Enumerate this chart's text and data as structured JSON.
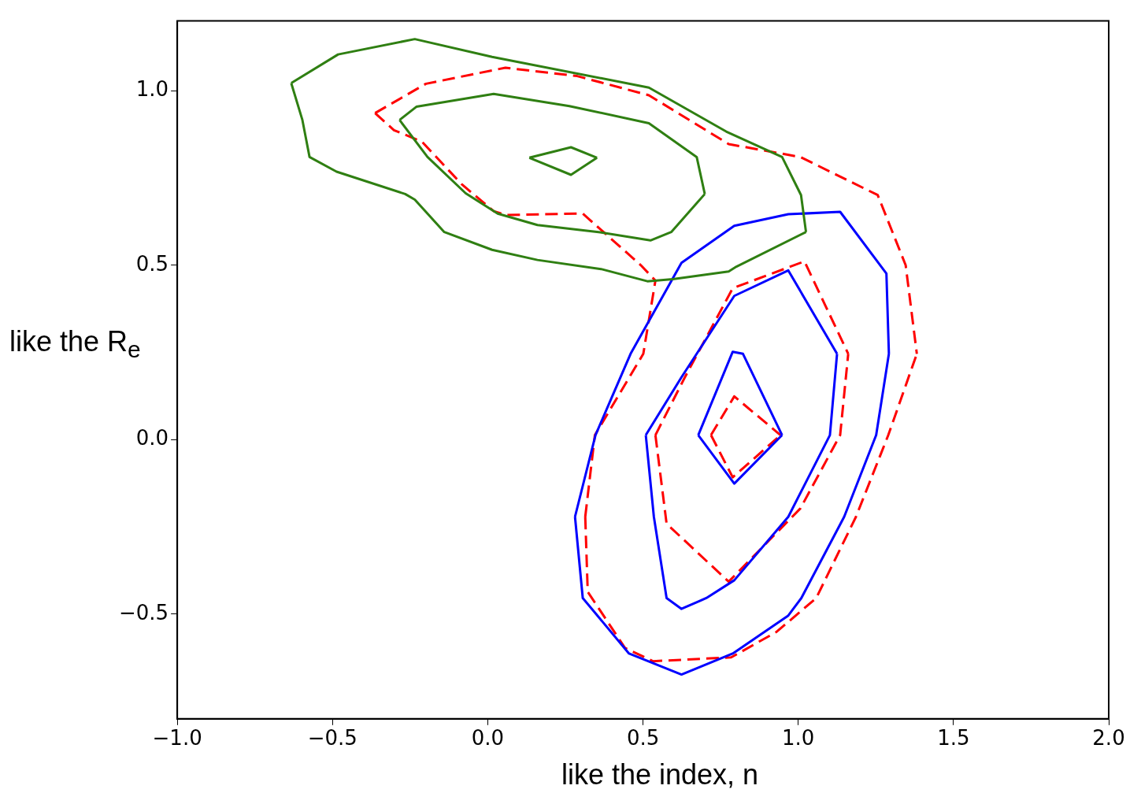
{
  "chart_data": {
    "type": "line",
    "xlabel": "like the index, n",
    "ylabel": "like the R$_{e}$",
    "xlim": [
      -1.0,
      2.0
    ],
    "ylim": [
      -0.8,
      1.2
    ],
    "xticks": [
      {
        "value": -1.0,
        "label": "−1.0"
      },
      {
        "value": -0.5,
        "label": "−0.5"
      },
      {
        "value": 0.0,
        "label": "0.0"
      },
      {
        "value": 0.5,
        "label": "0.5"
      },
      {
        "value": 1.0,
        "label": "1.0"
      },
      {
        "value": 1.5,
        "label": "1.5"
      },
      {
        "value": 2.0,
        "label": "2.0"
      }
    ],
    "yticks": [
      {
        "value": -0.5,
        "label": "−0.5"
      },
      {
        "value": 0.0,
        "label": "0.0"
      },
      {
        "value": 0.5,
        "label": "0.5"
      },
      {
        "value": 1.0,
        "label": "1.0"
      }
    ],
    "grid": false,
    "legend": false,
    "marker": "none",
    "series": [
      {
        "color": "#2f7f12",
        "line_style": "solid",
        "x": [
          -0.633,
          -0.597,
          -0.574,
          -0.487,
          -0.266,
          -0.235,
          -0.14,
          0.014,
          0.16,
          0.365,
          0.514,
          0.596,
          0.776,
          0.801,
          1.025,
          null,
          -0.633,
          -0.482,
          -0.235,
          0.014,
          0.519,
          0.768,
          0.948,
          1.009,
          1.025
        ],
        "values": [
          1.022,
          0.916,
          0.81,
          0.768,
          0.704,
          0.688,
          0.595,
          0.544,
          0.515,
          0.489,
          0.454,
          0.46,
          0.482,
          0.496,
          0.595,
          null,
          1.022,
          1.104,
          1.148,
          1.097,
          1.009,
          0.883,
          0.81,
          0.701,
          0.595
        ]
      },
      {
        "color": "#2f7f12",
        "line_style": "solid",
        "x": [
          -0.284,
          -0.23,
          0.019,
          0.263,
          0.519,
          0.673,
          0.699,
          null,
          -0.284,
          -0.194,
          -0.071,
          0.032,
          0.16,
          0.357,
          0.524,
          0.591,
          0.699
        ],
        "values": [
          0.916,
          0.954,
          0.991,
          0.956,
          0.907,
          0.81,
          0.704,
          null,
          0.916,
          0.81,
          0.706,
          0.648,
          0.615,
          0.595,
          0.571,
          0.595,
          0.704
        ]
      },
      {
        "color": "#2f7f12",
        "line_style": "solid",
        "x": [
          0.134,
          0.268,
          0.352,
          null,
          0.134,
          0.268,
          0.352
        ],
        "values": [
          0.808,
          0.838,
          0.808,
          null,
          0.808,
          0.759,
          0.808
        ]
      },
      {
        "color": "#0000ff",
        "line_style": "solid",
        "x": [
          0.281,
          0.306,
          0.455,
          0.624,
          0.789,
          0.968,
          1.01,
          1.148,
          1.251,
          1.292,
          null,
          0.281,
          0.347,
          0.46,
          0.624,
          0.794,
          0.968,
          1.135,
          1.284,
          1.292
        ],
        "values": [
          -0.221,
          -0.454,
          -0.613,
          -0.673,
          -0.613,
          -0.504,
          -0.454,
          -0.221,
          0.013,
          0.246,
          null,
          -0.221,
          0.013,
          0.246,
          0.507,
          0.613,
          0.646,
          0.653,
          0.476,
          0.246
        ]
      },
      {
        "color": "#0000ff",
        "line_style": "solid",
        "x": [
          0.509,
          0.535,
          0.576,
          0.624,
          0.704,
          0.794,
          0.968,
          1.102,
          1.125,
          null,
          0.509,
          0.624,
          0.794,
          0.968,
          1.125
        ],
        "values": [
          0.013,
          -0.221,
          -0.454,
          -0.485,
          -0.454,
          -0.403,
          -0.221,
          0.013,
          0.246,
          null,
          0.013,
          0.179,
          0.412,
          0.485,
          0.246
        ]
      },
      {
        "color": "#0000ff",
        "line_style": "solid",
        "x": [
          0.678,
          0.794,
          0.948,
          null,
          0.678,
          0.789,
          0.822,
          0.948
        ],
        "values": [
          0.013,
          -0.126,
          0.013,
          null,
          0.013,
          0.252,
          0.246,
          0.013
        ]
      },
      {
        "color": "#ff0000",
        "line_style": "dashed",
        "x": [
          -0.363,
          -0.199,
          0.057,
          0.288,
          0.519,
          0.776,
          1.007,
          1.256,
          1.346,
          1.382,
          null,
          0.314,
          0.322,
          0.442,
          0.532,
          0.784,
          0.93,
          1.058,
          1.186,
          1.29,
          1.382,
          null,
          0.314,
          0.345,
          0.501,
          0.54,
          null,
          -0.363,
          -0.302,
          -0.212,
          -0.084,
          0.019,
          0.057,
          0.306,
          0.493,
          0.54
        ],
        "values": [
          0.936,
          1.02,
          1.066,
          1.042,
          0.987,
          0.847,
          0.81,
          0.701,
          0.5,
          0.246,
          null,
          -0.221,
          -0.436,
          -0.597,
          -0.635,
          -0.624,
          -0.551,
          -0.454,
          -0.221,
          0.013,
          0.246,
          null,
          -0.221,
          0.013,
          0.246,
          0.456,
          null,
          0.936,
          0.887,
          0.854,
          0.732,
          0.655,
          0.644,
          0.648,
          0.5,
          0.456
        ]
      },
      {
        "color": "#ff0000",
        "line_style": "dashed",
        "x": [
          0.54,
          0.576,
          0.776,
          1.007,
          1.135,
          1.161,
          null,
          0.54,
          0.635,
          0.789,
          1.02,
          1.161
        ],
        "values": [
          0.013,
          -0.241,
          -0.407,
          -0.197,
          0.013,
          0.246,
          null,
          0.013,
          0.179,
          0.434,
          0.511,
          0.246
        ]
      },
      {
        "color": "#ff0000",
        "line_style": "dashed",
        "x": [
          0.719,
          0.789,
          0.943,
          null,
          0.719,
          0.794,
          0.943
        ],
        "values": [
          0.013,
          -0.108,
          0.013,
          null,
          0.013,
          0.124,
          0.013
        ]
      }
    ]
  }
}
